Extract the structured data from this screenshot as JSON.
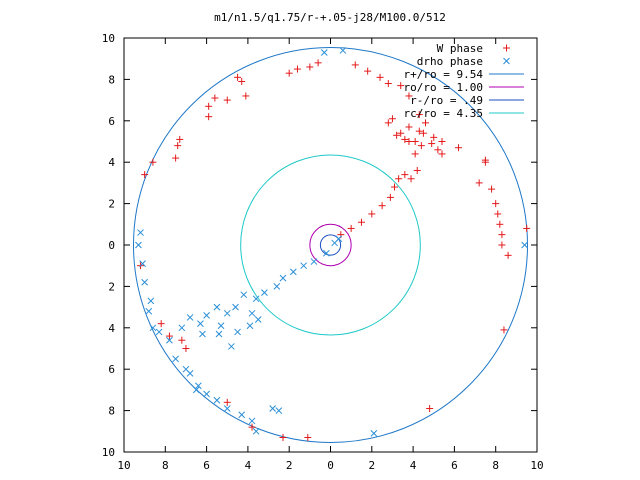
{
  "chart_data": {
    "type": "scatter",
    "title": "m1/n1.5/q1.75/r-+.05-j28/M100.0/512",
    "xlabel": "",
    "ylabel": "",
    "xlim": [
      -10,
      10
    ],
    "ylim": [
      -10,
      10
    ],
    "x_tick_values": [
      -10,
      -8,
      -6,
      -4,
      -2,
      0,
      2,
      4,
      6,
      8,
      10
    ],
    "x_tick_labels": [
      "10",
      "8",
      "6",
      "4",
      "2",
      "0",
      "2",
      "4",
      "6",
      "8",
      "10"
    ],
    "y_tick_values": [
      10,
      8,
      6,
      4,
      2,
      0,
      -2,
      -4,
      -6,
      -8,
      -10
    ],
    "y_tick_labels": [
      "10",
      "8",
      "6",
      "4",
      "2",
      "0",
      "2",
      "4",
      "6",
      "8",
      "10"
    ],
    "grid": false,
    "legend_position": "top-right",
    "series": [
      {
        "name": "W phase",
        "marker": "plus",
        "color": "#e41a1a",
        "points": [
          [
            0.5,
            0.5
          ],
          [
            1.0,
            0.8
          ],
          [
            1.5,
            1.1
          ],
          [
            2.0,
            1.5
          ],
          [
            2.5,
            1.9
          ],
          [
            2.9,
            2.3
          ],
          [
            3.1,
            2.8
          ],
          [
            3.3,
            3.2
          ],
          [
            3.6,
            3.4
          ],
          [
            3.9,
            3.2
          ],
          [
            4.2,
            3.6
          ],
          [
            4.1,
            4.4
          ],
          [
            4.4,
            4.8
          ],
          [
            4.1,
            5.0
          ],
          [
            4.5,
            5.4
          ],
          [
            4.9,
            4.9
          ],
          [
            5.2,
            4.6
          ],
          [
            5.4,
            5.0
          ],
          [
            4.6,
            5.9
          ],
          [
            4.3,
            5.5
          ],
          [
            3.8,
            5.0
          ],
          [
            3.2,
            5.3
          ],
          [
            2.8,
            5.9
          ],
          [
            3.0,
            6.1
          ],
          [
            3.4,
            5.4
          ],
          [
            3.6,
            5.1
          ],
          [
            3.8,
            5.7
          ],
          [
            4.3,
            6.3
          ],
          [
            5.0,
            5.2
          ],
          [
            5.4,
            4.4
          ],
          [
            6.2,
            4.7
          ],
          [
            7.5,
            4.1
          ],
          [
            7.8,
            2.7
          ],
          [
            8.0,
            2.0
          ],
          [
            8.1,
            1.5
          ],
          [
            8.2,
            1.0
          ],
          [
            8.3,
            0.5
          ],
          [
            8.3,
            0.0
          ],
          [
            8.6,
            -0.5
          ],
          [
            9.5,
            0.8
          ],
          [
            -9.0,
            3.4
          ],
          [
            -8.6,
            4.0
          ],
          [
            -7.5,
            4.2
          ],
          [
            -7.4,
            4.8
          ],
          [
            -7.3,
            5.1
          ],
          [
            -5.9,
            6.2
          ],
          [
            -5.9,
            6.7
          ],
          [
            -5.6,
            7.1
          ],
          [
            -5.0,
            7.0
          ],
          [
            -4.1,
            7.2
          ],
          [
            -4.3,
            7.9
          ],
          [
            -4.5,
            8.1
          ],
          [
            -2.0,
            8.3
          ],
          [
            -1.6,
            8.5
          ],
          [
            -1.0,
            8.6
          ],
          [
            -0.6,
            8.8
          ],
          [
            1.2,
            8.7
          ],
          [
            1.8,
            8.4
          ],
          [
            2.4,
            8.1
          ],
          [
            2.8,
            7.8
          ],
          [
            3.4,
            7.7
          ],
          [
            3.8,
            7.2
          ],
          [
            7.5,
            4.0
          ],
          [
            7.2,
            3.0
          ],
          [
            -9.2,
            -1.0
          ],
          [
            -8.2,
            -3.8
          ],
          [
            -7.8,
            -4.4
          ],
          [
            -7.2,
            -4.6
          ],
          [
            -7.0,
            -5.0
          ],
          [
            -5.0,
            -7.6
          ],
          [
            -3.8,
            -8.8
          ],
          [
            -2.3,
            -9.3
          ],
          [
            -1.1,
            -9.3
          ],
          [
            4.8,
            -7.9
          ],
          [
            8.4,
            -4.1
          ]
        ]
      },
      {
        "name": "drho phase",
        "marker": "cross",
        "color": "#2a8fd8",
        "points": [
          [
            0.4,
            0.3
          ],
          [
            0.2,
            0.1
          ],
          [
            -0.2,
            -0.4
          ],
          [
            -0.8,
            -0.8
          ],
          [
            -1.3,
            -1.0
          ],
          [
            -1.8,
            -1.3
          ],
          [
            -2.3,
            -1.6
          ],
          [
            -2.6,
            -2.0
          ],
          [
            -3.2,
            -2.3
          ],
          [
            -3.6,
            -2.6
          ],
          [
            -4.2,
            -2.4
          ],
          [
            -4.6,
            -3.0
          ],
          [
            -3.8,
            -3.3
          ],
          [
            -3.5,
            -3.6
          ],
          [
            -3.9,
            -3.9
          ],
          [
            -4.5,
            -4.2
          ],
          [
            -5.0,
            -3.3
          ],
          [
            -5.5,
            -3.0
          ],
          [
            -5.3,
            -3.9
          ],
          [
            -6.0,
            -3.4
          ],
          [
            -6.3,
            -3.8
          ],
          [
            -6.2,
            -4.3
          ],
          [
            -6.8,
            -3.5
          ],
          [
            -7.2,
            -4.0
          ],
          [
            -7.8,
            -4.6
          ],
          [
            -8.3,
            -4.2
          ],
          [
            -8.6,
            -4.0
          ],
          [
            -8.8,
            -3.2
          ],
          [
            -9.0,
            -1.8
          ],
          [
            -9.1,
            -0.9
          ],
          [
            -9.3,
            0.0
          ],
          [
            -9.2,
            0.6
          ],
          [
            -8.7,
            -2.7
          ],
          [
            -5.4,
            -4.3
          ],
          [
            -4.8,
            -4.9
          ],
          [
            -7.5,
            -5.5
          ],
          [
            -6.8,
            -6.2
          ],
          [
            -6.5,
            -7.0
          ],
          [
            -6.0,
            -7.2
          ],
          [
            -5.5,
            -7.5
          ],
          [
            -5.0,
            -7.9
          ],
          [
            -4.3,
            -8.2
          ],
          [
            -3.8,
            -8.5
          ],
          [
            -3.6,
            -9.0
          ],
          [
            -2.8,
            -7.9
          ],
          [
            -2.5,
            -8.0
          ],
          [
            -6.4,
            -6.8
          ],
          [
            -7.0,
            -6.0
          ],
          [
            2.1,
            -9.1
          ],
          [
            -0.3,
            9.3
          ],
          [
            0.6,
            9.4
          ],
          [
            9.4,
            0.0
          ]
        ]
      }
    ],
    "circles": [
      {
        "label": "r+/ro = 9.54",
        "radius": 9.54,
        "color": "#1f78c8"
      },
      {
        "label": "ro/ro = 1.00",
        "radius": 1.0,
        "color": "#b000b0"
      },
      {
        "label": "r-/ro = .49",
        "radius": 0.49,
        "color": "#1a4fc0"
      },
      {
        "label": "rc/ro = 4.35",
        "radius": 4.35,
        "color": "#20c8c8"
      }
    ]
  }
}
